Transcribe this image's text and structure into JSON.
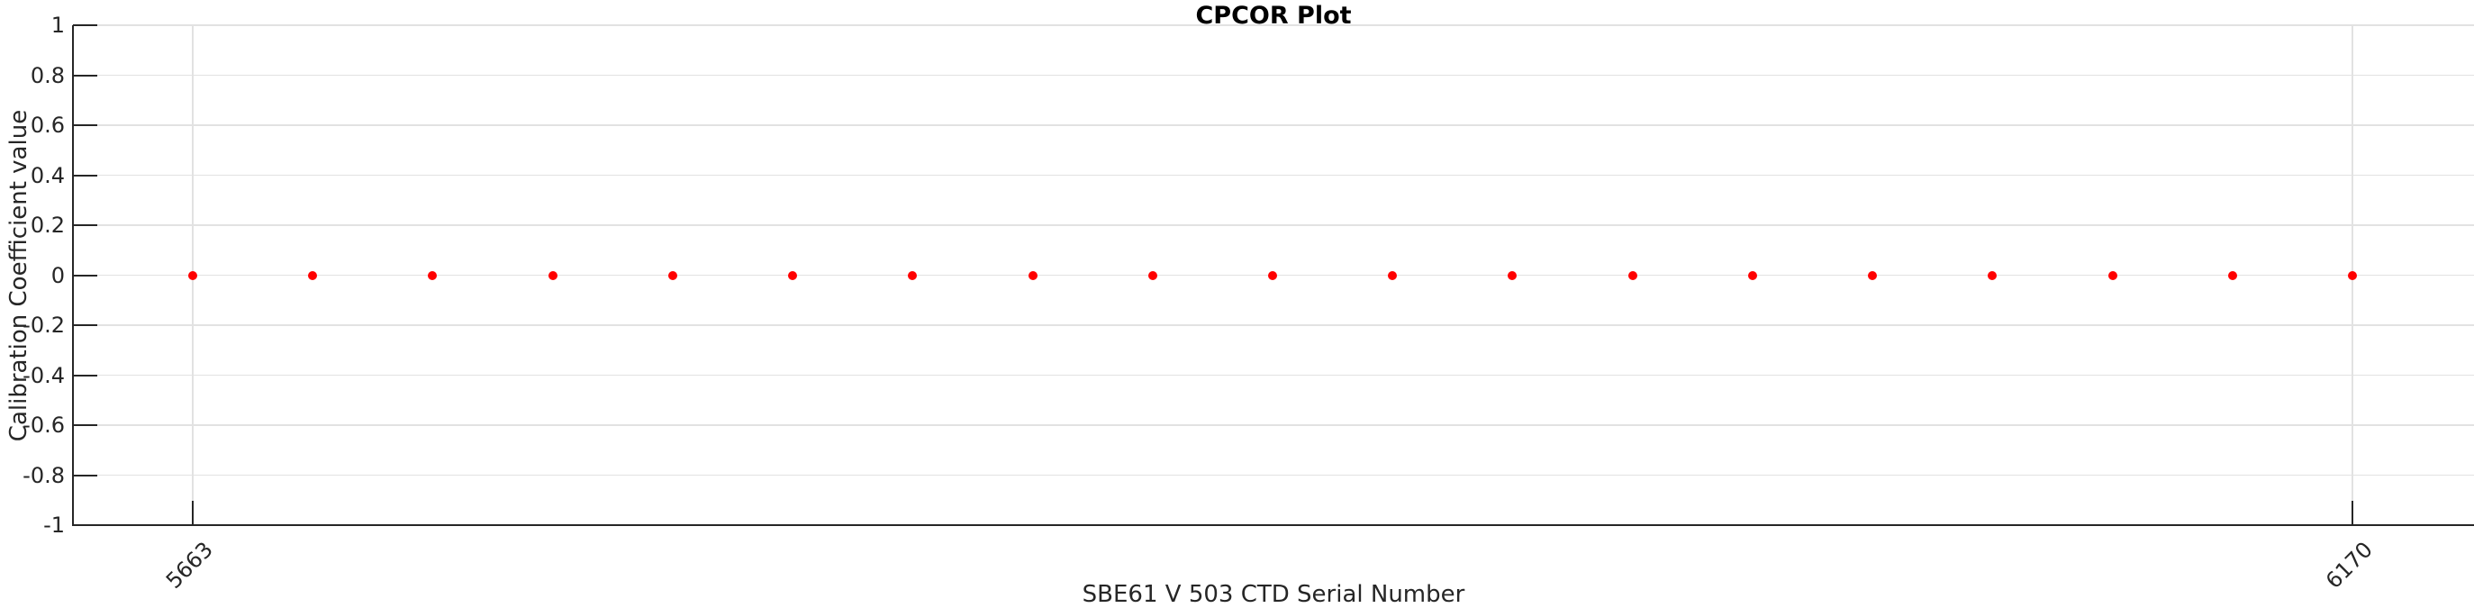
{
  "chart_data": {
    "type": "scatter",
    "title": "CPCOR Plot",
    "xlabel": "SBE61 V 503 CTD Serial Number",
    "ylabel": "Calibration Coefficient value",
    "ylim": [
      -1,
      1
    ],
    "grid": true,
    "y_tick_labels_top_to_bottom": [
      "1",
      "0.8",
      "0.6",
      "0.4",
      "0.2",
      "0",
      "-0.2",
      "-0.4",
      "-0.6",
      "-0.8",
      "-1"
    ],
    "x_ticks": [
      {
        "label": "5663",
        "point_index": 0
      },
      {
        "label": "6170",
        "point_index": 18
      }
    ],
    "x_tick_rotation_deg": 45,
    "num_points": 19,
    "series": [
      {
        "name": "CPCOR",
        "marker": "filled-circle",
        "color": "#ff0000",
        "y_values": [
          0,
          0,
          0,
          0,
          0,
          0,
          0,
          0,
          0,
          0,
          0,
          0,
          0,
          0,
          0,
          0,
          0,
          0,
          0
        ]
      }
    ],
    "colors": {
      "axis": "#262626",
      "grid": "#e2e2e2",
      "title": "#000000",
      "background": "#ffffff"
    }
  }
}
